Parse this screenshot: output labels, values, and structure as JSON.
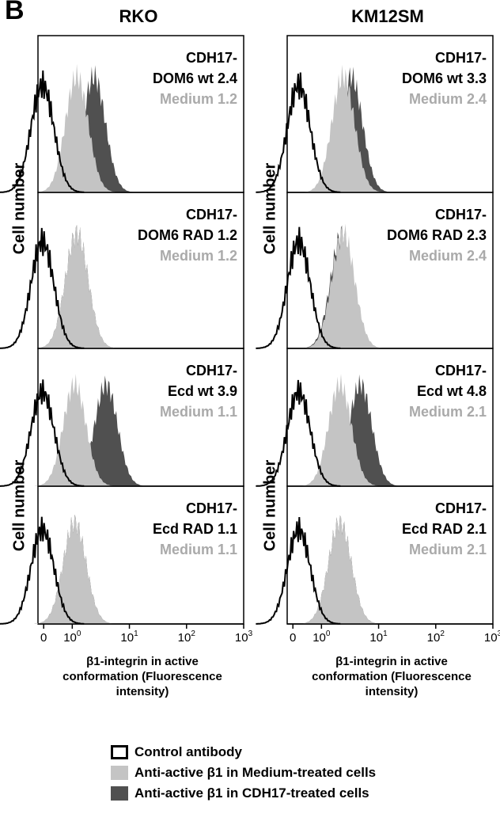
{
  "panel_label": "B",
  "columns": [
    {
      "title": "RKO"
    },
    {
      "title": "KM12SM"
    }
  ],
  "y_axis_label": "Cell number",
  "x_axis_label_lines": [
    "β1-integrin in active",
    "conformation (Fluorescence",
    "intensity)"
  ],
  "x_ticks": [
    {
      "base": "0",
      "exp": ""
    },
    {
      "base": "10",
      "exp": "0"
    },
    {
      "base": "10",
      "exp": "1"
    },
    {
      "base": "10",
      "exp": "2"
    },
    {
      "base": "10",
      "exp": "3"
    }
  ],
  "legend": [
    {
      "label": "Control antibody",
      "swatch": "outline"
    },
    {
      "label": "Anti-active β1 in Medium-treated cells",
      "swatch": "#c4c4c4"
    },
    {
      "label": "Anti-active β1 in CDH17-treated cells",
      "swatch": "#505050"
    }
  ],
  "colors": {
    "medium": "#c4c4c4",
    "cdh17": "#505050",
    "control": "#000000",
    "medium_text": "#aaaaaa"
  },
  "chart_data": [
    {
      "type": "area",
      "cell_line": "RKO",
      "label_lines": [
        "CDH17-",
        "DOM6 wt 2.4"
      ],
      "medium_text": "Medium 1.2",
      "peaks": {
        "control": 0.3,
        "medium": 1.2,
        "cdh17": 2.4
      }
    },
    {
      "type": "area",
      "cell_line": "RKO",
      "label_lines": [
        "CDH17-",
        "DOM6 RAD 1.2"
      ],
      "medium_text": "Medium 1.2",
      "peaks": {
        "control": 0.3,
        "medium": 1.2,
        "cdh17": 1.2
      }
    },
    {
      "type": "area",
      "cell_line": "RKO",
      "label_lines": [
        "CDH17-",
        "Ecd wt 3.9"
      ],
      "medium_text": "Medium 1.1",
      "peaks": {
        "control": 0.3,
        "medium": 1.1,
        "cdh17": 3.9
      }
    },
    {
      "type": "area",
      "cell_line": "RKO",
      "label_lines": [
        "CDH17-",
        "Ecd RAD 1.1"
      ],
      "medium_text": "Medium 1.1",
      "peaks": {
        "control": 0.3,
        "medium": 1.1,
        "cdh17": 1.1
      }
    },
    {
      "type": "area",
      "cell_line": "KM12SM",
      "label_lines": [
        "CDH17-",
        "DOM6 wt 3.3"
      ],
      "medium_text": "Medium 2.4",
      "peaks": {
        "control": 0.4,
        "medium": 2.4,
        "cdh17": 3.3
      }
    },
    {
      "type": "area",
      "cell_line": "KM12SM",
      "label_lines": [
        "CDH17-",
        "DOM6 RAD 2.3"
      ],
      "medium_text": "Medium 2.4",
      "peaks": {
        "control": 0.4,
        "medium": 2.4,
        "cdh17": 2.3
      }
    },
    {
      "type": "area",
      "cell_line": "KM12SM",
      "label_lines": [
        "CDH17-",
        "Ecd wt 4.8"
      ],
      "medium_text": "Medium 2.1",
      "peaks": {
        "control": 0.4,
        "medium": 2.1,
        "cdh17": 4.8
      }
    },
    {
      "type": "area",
      "cell_line": "KM12SM",
      "label_lines": [
        "CDH17-",
        "Ecd RAD 2.1"
      ],
      "medium_text": "Medium 2.1",
      "peaks": {
        "control": 0.4,
        "medium": 2.1,
        "cdh17": 2.1
      }
    }
  ]
}
